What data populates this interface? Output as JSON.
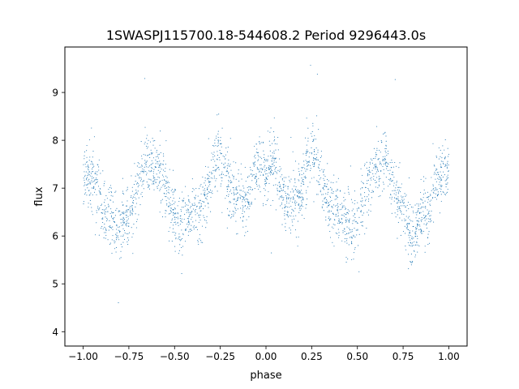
{
  "chart_data": {
    "type": "scatter",
    "title": "1SWASPJ115700.18-544608.2 Period 9296443.0s",
    "xlabel": "phase",
    "ylabel": "flux",
    "xlim": [
      -1.1,
      1.1
    ],
    "ylim": [
      3.7,
      9.95
    ],
    "xticks": [
      -1.0,
      -0.75,
      -0.5,
      -0.25,
      0.0,
      0.25,
      0.5,
      0.75,
      1.0
    ],
    "xtick_labels": [
      "−1.00",
      "−0.75",
      "−0.50",
      "−0.25",
      "0.00",
      "0.25",
      "0.50",
      "0.75",
      "1.00"
    ],
    "yticks": [
      4,
      5,
      6,
      7,
      8,
      9
    ],
    "ytick_labels": [
      "4",
      "5",
      "6",
      "7",
      "8",
      "9"
    ],
    "grid": false,
    "legend": "none",
    "marker_color": "#1f77b4",
    "series": [
      {
        "description_of_shape": "phase-folded light curve, mirrored over [-1,1]; mean flux vs phase (data units)",
        "x": [
          0.0,
          0.02,
          0.05,
          0.07,
          0.09,
          0.11,
          0.13,
          0.16,
          0.18,
          0.2,
          0.22,
          0.24,
          0.26,
          0.28,
          0.3,
          0.33,
          0.36,
          0.4,
          0.44,
          0.48,
          0.5,
          0.53,
          0.56,
          0.58,
          0.6,
          0.62,
          0.65,
          0.67,
          0.7,
          0.72,
          0.75,
          0.78,
          0.8,
          0.83,
          0.86,
          0.88,
          0.9,
          0.92,
          0.95,
          0.98,
          1.0
        ],
        "y": [
          7.3,
          7.5,
          7.6,
          7.2,
          6.8,
          6.6,
          6.7,
          6.8,
          6.9,
          7.0,
          7.3,
          7.6,
          7.8,
          7.6,
          7.2,
          6.8,
          6.6,
          6.4,
          6.3,
          6.2,
          6.4,
          6.8,
          7.1,
          7.4,
          7.5,
          7.4,
          7.6,
          7.4,
          7.0,
          6.7,
          6.5,
          6.3,
          6.0,
          6.2,
          6.5,
          6.3,
          6.6,
          7.0,
          7.2,
          7.3,
          7.3
        ]
      }
    ]
  }
}
